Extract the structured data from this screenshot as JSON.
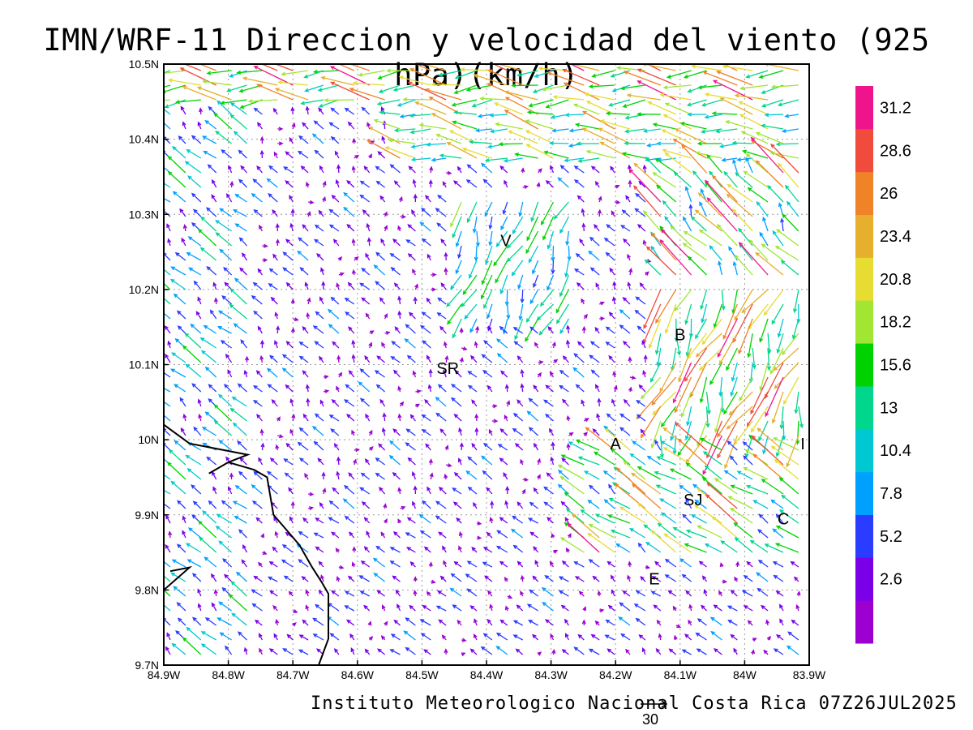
{
  "title": "IMN/WRF-11 Direccion y velocidad del viento (925 hPa)(km/h)",
  "footer": "Instituto Meteorologico Nacional Costa Rica 07Z26JUL2025",
  "reference_vector_label": "30",
  "map": {
    "lon_range": [
      -84.9,
      -83.9
    ],
    "lat_range": [
      9.7,
      10.5
    ],
    "lon_ticks": [
      {
        "value": -84.9,
        "label": "84.9W"
      },
      {
        "value": -84.8,
        "label": "84.8W"
      },
      {
        "value": -84.7,
        "label": "84.7W"
      },
      {
        "value": -84.6,
        "label": "84.6W"
      },
      {
        "value": -84.5,
        "label": "84.5W"
      },
      {
        "value": -84.4,
        "label": "84.4W"
      },
      {
        "value": -84.3,
        "label": "84.3W"
      },
      {
        "value": -84.2,
        "label": "84.2W"
      },
      {
        "value": -84.1,
        "label": "84.1W"
      },
      {
        "value": -84.0,
        "label": "84W"
      },
      {
        "value": -83.9,
        "label": "83.9W"
      }
    ],
    "lat_ticks": [
      {
        "value": 9.7,
        "label": "9.7N"
      },
      {
        "value": 9.8,
        "label": "9.8N"
      },
      {
        "value": 9.9,
        "label": "9.9N"
      },
      {
        "value": 10.0,
        "label": "10N"
      },
      {
        "value": 10.1,
        "label": "10.1N"
      },
      {
        "value": 10.2,
        "label": "10.2N"
      },
      {
        "value": 10.3,
        "label": "10.3N"
      },
      {
        "value": 10.4,
        "label": "10.4N"
      },
      {
        "value": 10.5,
        "label": "10.5N"
      }
    ],
    "grid": true,
    "cities": [
      {
        "label": "V",
        "lon": -84.37,
        "lat": 10.265
      },
      {
        "label": "B",
        "lon": -84.1,
        "lat": 10.14
      },
      {
        "label": "SR",
        "lon": -84.46,
        "lat": 10.095
      },
      {
        "label": "A",
        "lon": -84.2,
        "lat": 9.995
      },
      {
        "label": "I",
        "lon": -83.91,
        "lat": 9.995
      },
      {
        "label": "SJ",
        "lon": -84.08,
        "lat": 9.92
      },
      {
        "label": "C",
        "lon": -83.94,
        "lat": 9.895
      },
      {
        "label": "E",
        "lon": -84.14,
        "lat": 9.815
      }
    ],
    "coastline": [
      [
        -84.9,
        10.02
      ],
      [
        -84.86,
        9.995
      ],
      [
        -84.8,
        9.985
      ],
      [
        -84.77,
        9.98
      ],
      [
        -84.8,
        9.97
      ],
      [
        -84.83,
        9.955
      ],
      [
        -84.8,
        9.97
      ],
      [
        -84.76,
        9.96
      ],
      [
        -84.74,
        9.95
      ],
      [
        -84.73,
        9.9
      ],
      [
        -84.72,
        9.89
      ],
      [
        -84.7,
        9.87
      ],
      [
        -84.69,
        9.86
      ],
      [
        -84.67,
        9.83
      ],
      [
        -84.655,
        9.81
      ],
      [
        -84.645,
        9.795
      ],
      [
        -84.645,
        9.77
      ],
      [
        -84.645,
        9.735
      ],
      [
        -84.66,
        9.7
      ]
    ],
    "coastline_fragment": [
      [
        -84.9,
        9.8
      ],
      [
        -84.88,
        9.815
      ],
      [
        -84.86,
        9.83
      ],
      [
        -84.89,
        9.825
      ]
    ]
  },
  "colorbar": {
    "colors": [
      "#9b00d0",
      "#7a00e8",
      "#2a3cff",
      "#00a0ff",
      "#00c8d2",
      "#00d68c",
      "#00d200",
      "#a0e632",
      "#e6dc32",
      "#e6af2d",
      "#f08228",
      "#f04b3c",
      "#f0148c"
    ],
    "labels": [
      "2.6",
      "5.2",
      "7.8",
      "10.4",
      "13",
      "15.6",
      "18.2",
      "20.8",
      "23.4",
      "26",
      "28.6",
      "31.2"
    ]
  },
  "chart_data": {
    "type": "vector_field",
    "variable": "Direccion y velocidad del viento",
    "level": "925 hPa",
    "units": "km/h",
    "speed_classes": [
      2.6,
      5.2,
      7.8,
      10.4,
      13,
      15.6,
      18.2,
      20.8,
      23.4,
      26,
      28.6,
      31.2
    ],
    "region_summary": [
      {
        "lon": -84.4,
        "lat": 10.47,
        "speed": 22,
        "direction_to_deg": 185
      },
      {
        "lon": -84.05,
        "lat": 10.32,
        "speed": 20,
        "direction_to_deg": 160
      },
      {
        "lon": -84.85,
        "lat": 10.05,
        "speed": 9,
        "direction_to_deg": 110
      },
      {
        "lon": -84.55,
        "lat": 9.85,
        "speed": 4,
        "direction_to_deg": 115
      },
      {
        "lon": -84.1,
        "lat": 9.95,
        "speed": 16,
        "direction_to_deg": 160
      },
      {
        "lon": -84.08,
        "lat": 10.05,
        "speed": 24,
        "direction_to_deg": 245
      }
    ]
  }
}
